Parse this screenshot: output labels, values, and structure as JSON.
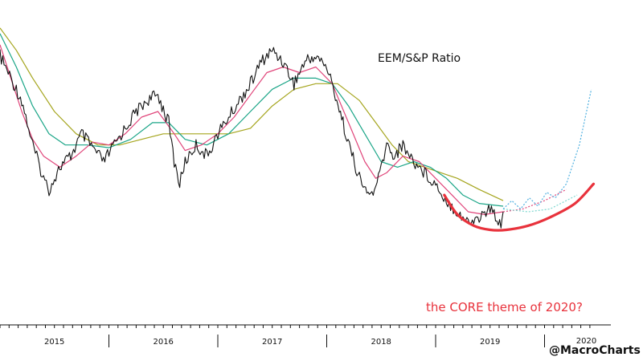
{
  "chart_data": {
    "type": "line",
    "title": "EEM/S&P Ratio",
    "xlabel": "",
    "ylabel": "",
    "grid": false,
    "legend": "none",
    "x_tick_labels": [
      "2015",
      "2016",
      "2017",
      "2018",
      "2019",
      "2020"
    ],
    "x_range": [
      2015.0,
      2020.55
    ],
    "y_range": [
      0.0,
      1.0
    ],
    "y_unit": "normalized ratio level (no y axis printed)",
    "series": [
      {
        "role": "price",
        "color": "#111111",
        "points": [
          [
            2015.0,
            0.88
          ],
          [
            2015.1,
            0.8
          ],
          [
            2015.2,
            0.72
          ],
          [
            2015.3,
            0.56
          ],
          [
            2015.4,
            0.44
          ],
          [
            2015.45,
            0.4
          ],
          [
            2015.55,
            0.48
          ],
          [
            2015.65,
            0.52
          ],
          [
            2015.75,
            0.6
          ],
          [
            2015.85,
            0.55
          ],
          [
            2015.95,
            0.5
          ],
          [
            2016.05,
            0.56
          ],
          [
            2016.15,
            0.62
          ],
          [
            2016.25,
            0.68
          ],
          [
            2016.35,
            0.72
          ],
          [
            2016.45,
            0.74
          ],
          [
            2016.55,
            0.64
          ],
          [
            2016.6,
            0.5
          ],
          [
            2016.65,
            0.42
          ],
          [
            2016.7,
            0.5
          ],
          [
            2016.8,
            0.56
          ],
          [
            2016.9,
            0.52
          ],
          [
            2017.0,
            0.6
          ],
          [
            2017.1,
            0.66
          ],
          [
            2017.2,
            0.72
          ],
          [
            2017.3,
            0.78
          ],
          [
            2017.4,
            0.86
          ],
          [
            2017.5,
            0.9
          ],
          [
            2017.6,
            0.86
          ],
          [
            2017.7,
            0.78
          ],
          [
            2017.8,
            0.86
          ],
          [
            2017.9,
            0.88
          ],
          [
            2018.0,
            0.84
          ],
          [
            2018.08,
            0.74
          ],
          [
            2018.15,
            0.64
          ],
          [
            2018.22,
            0.54
          ],
          [
            2018.3,
            0.44
          ],
          [
            2018.38,
            0.38
          ],
          [
            2018.45,
            0.4
          ],
          [
            2018.5,
            0.48
          ],
          [
            2018.55,
            0.56
          ],
          [
            2018.62,
            0.52
          ],
          [
            2018.7,
            0.56
          ],
          [
            2018.8,
            0.5
          ],
          [
            2018.9,
            0.46
          ],
          [
            2019.0,
            0.42
          ],
          [
            2019.1,
            0.36
          ],
          [
            2019.2,
            0.32
          ],
          [
            2019.3,
            0.28
          ],
          [
            2019.4,
            0.3
          ],
          [
            2019.5,
            0.33
          ],
          [
            2019.6,
            0.28
          ],
          [
            2019.62,
            0.32
          ]
        ]
      },
      {
        "role": "short moving average",
        "color": "#e0457a",
        "points": [
          [
            2015.0,
            0.92
          ],
          [
            2015.1,
            0.8
          ],
          [
            2015.2,
            0.68
          ],
          [
            2015.3,
            0.58
          ],
          [
            2015.4,
            0.52
          ],
          [
            2015.55,
            0.48
          ],
          [
            2015.7,
            0.52
          ],
          [
            2015.85,
            0.57
          ],
          [
            2016.0,
            0.56
          ],
          [
            2016.15,
            0.6
          ],
          [
            2016.3,
            0.66
          ],
          [
            2016.45,
            0.68
          ],
          [
            2016.6,
            0.6
          ],
          [
            2016.7,
            0.54
          ],
          [
            2016.85,
            0.56
          ],
          [
            2017.0,
            0.6
          ],
          [
            2017.15,
            0.66
          ],
          [
            2017.3,
            0.74
          ],
          [
            2017.45,
            0.82
          ],
          [
            2017.6,
            0.84
          ],
          [
            2017.75,
            0.82
          ],
          [
            2017.9,
            0.84
          ],
          [
            2018.05,
            0.78
          ],
          [
            2018.2,
            0.64
          ],
          [
            2018.35,
            0.5
          ],
          [
            2018.45,
            0.44
          ],
          [
            2018.55,
            0.46
          ],
          [
            2018.7,
            0.52
          ],
          [
            2018.85,
            0.5
          ],
          [
            2019.0,
            0.44
          ],
          [
            2019.15,
            0.38
          ],
          [
            2019.3,
            0.32
          ],
          [
            2019.45,
            0.31
          ],
          [
            2019.62,
            0.32
          ]
        ]
      },
      {
        "role": "medium moving average",
        "color": "#1aa587",
        "points": [
          [
            2015.0,
            0.96
          ],
          [
            2015.15,
            0.84
          ],
          [
            2015.3,
            0.7
          ],
          [
            2015.45,
            0.6
          ],
          [
            2015.6,
            0.56
          ],
          [
            2015.8,
            0.56
          ],
          [
            2016.0,
            0.55
          ],
          [
            2016.2,
            0.58
          ],
          [
            2016.4,
            0.64
          ],
          [
            2016.55,
            0.64
          ],
          [
            2016.7,
            0.58
          ],
          [
            2016.9,
            0.56
          ],
          [
            2017.1,
            0.6
          ],
          [
            2017.3,
            0.68
          ],
          [
            2017.5,
            0.76
          ],
          [
            2017.7,
            0.8
          ],
          [
            2017.9,
            0.8
          ],
          [
            2018.05,
            0.78
          ],
          [
            2018.2,
            0.7
          ],
          [
            2018.35,
            0.6
          ],
          [
            2018.5,
            0.5
          ],
          [
            2018.65,
            0.48
          ],
          [
            2018.8,
            0.5
          ],
          [
            2018.95,
            0.48
          ],
          [
            2019.1,
            0.44
          ],
          [
            2019.25,
            0.38
          ],
          [
            2019.4,
            0.35
          ],
          [
            2019.62,
            0.34
          ]
        ]
      },
      {
        "role": "long moving average",
        "color": "#a5a51e",
        "points": [
          [
            2015.0,
            0.98
          ],
          [
            2015.15,
            0.9
          ],
          [
            2015.3,
            0.8
          ],
          [
            2015.5,
            0.68
          ],
          [
            2015.7,
            0.6
          ],
          [
            2015.9,
            0.56
          ],
          [
            2016.1,
            0.56
          ],
          [
            2016.3,
            0.58
          ],
          [
            2016.5,
            0.6
          ],
          [
            2016.7,
            0.6
          ],
          [
            2016.9,
            0.6
          ],
          [
            2017.1,
            0.6
          ],
          [
            2017.3,
            0.62
          ],
          [
            2017.5,
            0.7
          ],
          [
            2017.7,
            0.76
          ],
          [
            2017.9,
            0.78
          ],
          [
            2018.1,
            0.78
          ],
          [
            2018.3,
            0.72
          ],
          [
            2018.45,
            0.64
          ],
          [
            2018.6,
            0.56
          ],
          [
            2018.75,
            0.5
          ],
          [
            2018.9,
            0.48
          ],
          [
            2019.05,
            0.46
          ],
          [
            2019.2,
            0.44
          ],
          [
            2019.4,
            0.4
          ],
          [
            2019.62,
            0.36
          ]
        ]
      },
      {
        "role": "projection",
        "color": "#4fb0e0",
        "dashed": true,
        "points": [
          [
            2019.62,
            0.33
          ],
          [
            2019.7,
            0.36
          ],
          [
            2019.78,
            0.33
          ],
          [
            2019.86,
            0.37
          ],
          [
            2019.94,
            0.34
          ],
          [
            2020.02,
            0.39
          ],
          [
            2020.1,
            0.37
          ],
          [
            2020.2,
            0.42
          ],
          [
            2020.32,
            0.56
          ],
          [
            2020.43,
            0.76
          ]
        ]
      },
      {
        "role": "projected short average",
        "color": "#e0457a",
        "dashed": true,
        "points": [
          [
            2019.62,
            0.32
          ],
          [
            2019.8,
            0.33
          ],
          [
            2020.0,
            0.36
          ],
          [
            2020.2,
            0.4
          ]
        ]
      },
      {
        "role": "projected medium average",
        "color": "#7fd8d0",
        "dashed": true,
        "points": [
          [
            2019.62,
            0.33
          ],
          [
            2019.85,
            0.32
          ],
          [
            2020.05,
            0.33
          ],
          [
            2020.3,
            0.38
          ]
        ]
      }
    ],
    "annotations": {
      "text": "the CORE theme of 2020?",
      "text_color": "#e8323c",
      "arc_color": "#e8323c",
      "arc_points": [
        [
          2019.08,
          0.38
        ],
        [
          2019.2,
          0.31
        ],
        [
          2019.35,
          0.27
        ],
        [
          2019.5,
          0.255
        ],
        [
          2019.65,
          0.255
        ],
        [
          2019.85,
          0.27
        ],
        [
          2020.05,
          0.3
        ],
        [
          2020.28,
          0.35
        ],
        [
          2020.45,
          0.42
        ]
      ]
    },
    "watermark": "@MacroCharts"
  }
}
